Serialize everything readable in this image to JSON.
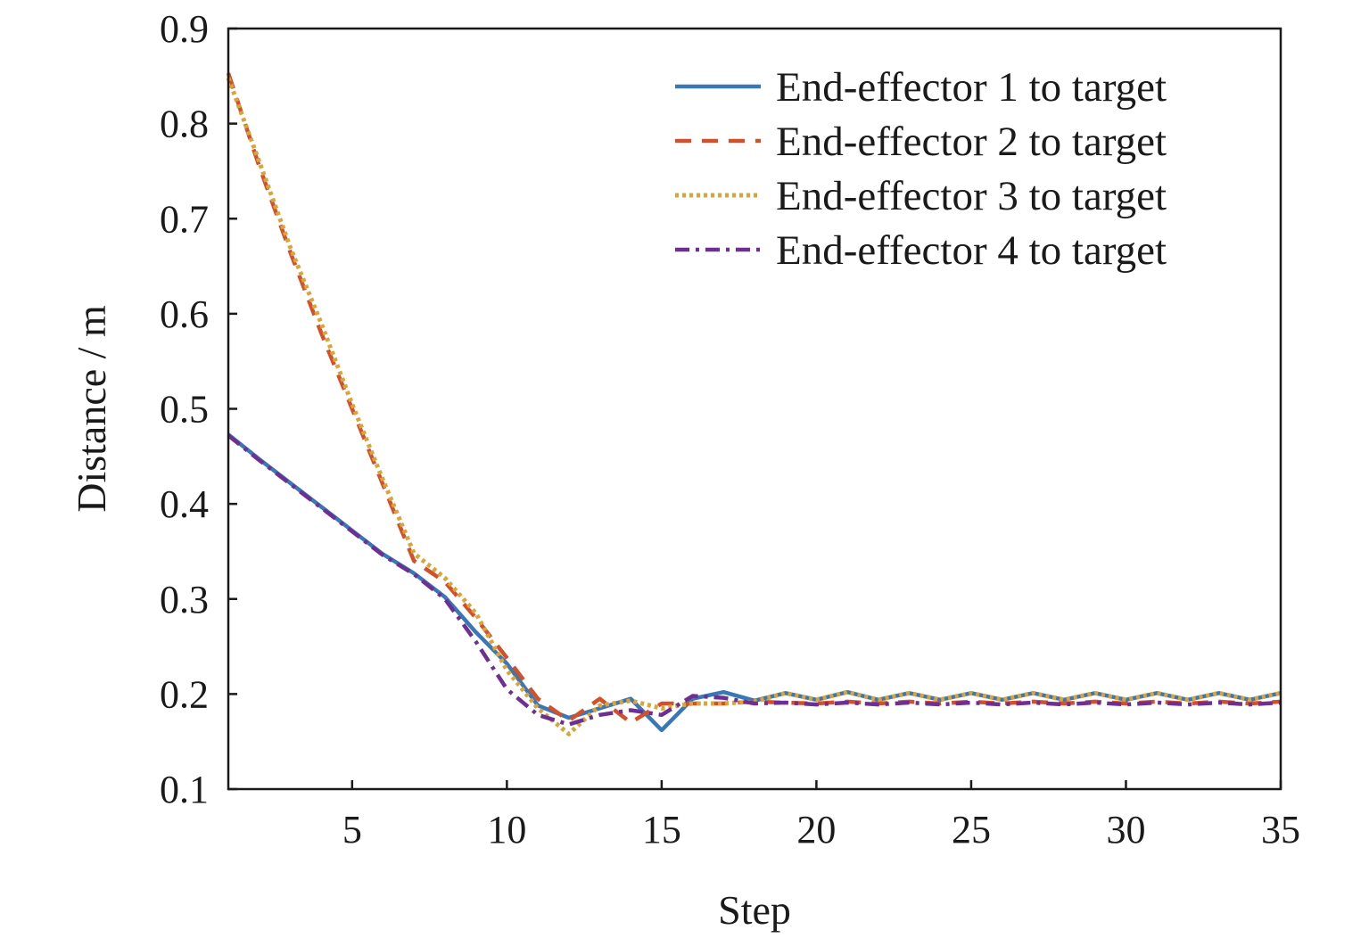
{
  "chart_data": {
    "type": "line",
    "title": "",
    "xlabel": "Step",
    "ylabel": "Distance / m",
    "xlim": [
      1,
      35
    ],
    "ylim": [
      0.1,
      0.9
    ],
    "xticks": [
      5,
      10,
      15,
      20,
      25,
      30,
      35
    ],
    "xtick_labels": [
      "5",
      "10",
      "15",
      "20",
      "25",
      "30",
      "35"
    ],
    "yticks": [
      0.1,
      0.2,
      0.3,
      0.4,
      0.5,
      0.6,
      0.7,
      0.8,
      0.9
    ],
    "ytick_labels": [
      "0.1",
      "0.2",
      "0.3",
      "0.4",
      "0.5",
      "0.6",
      "0.7",
      "0.8",
      "0.9"
    ],
    "grid": false,
    "legend_position": "top-right",
    "x": [
      1,
      2,
      3,
      4,
      5,
      6,
      7,
      8,
      9,
      10,
      11,
      12,
      13,
      14,
      15,
      16,
      17,
      18,
      19,
      20,
      21,
      22,
      23,
      24,
      25,
      26,
      27,
      28,
      29,
      30,
      31,
      32,
      33,
      34,
      35
    ],
    "series": [
      {
        "name": "End-effector 1 to target",
        "color": "#3a78b5",
        "dash": "solid",
        "values": [
          0.473,
          0.447,
          0.422,
          0.397,
          0.372,
          0.347,
          0.327,
          0.302,
          0.265,
          0.232,
          0.188,
          0.175,
          0.185,
          0.195,
          0.162,
          0.195,
          0.202,
          0.193,
          0.201,
          0.194,
          0.202,
          0.194,
          0.201,
          0.194,
          0.201,
          0.194,
          0.201,
          0.194,
          0.201,
          0.194,
          0.201,
          0.194,
          0.201,
          0.194,
          0.201
        ]
      },
      {
        "name": "End-effector 2 to target",
        "color": "#d2502a",
        "dash": "dashed",
        "values": [
          0.853,
          0.755,
          0.665,
          0.58,
          0.5,
          0.42,
          0.34,
          0.318,
          0.28,
          0.238,
          0.195,
          0.172,
          0.195,
          0.17,
          0.19,
          0.19,
          0.19,
          0.192,
          0.191,
          0.19,
          0.192,
          0.19,
          0.192,
          0.19,
          0.192,
          0.19,
          0.192,
          0.19,
          0.192,
          0.19,
          0.192,
          0.19,
          0.192,
          0.19,
          0.192
        ]
      },
      {
        "name": "End-effector 3 to target",
        "color": "#d9a43a",
        "dash": "dotted",
        "values": [
          0.848,
          0.76,
          0.67,
          0.59,
          0.505,
          0.425,
          0.348,
          0.322,
          0.285,
          0.225,
          0.185,
          0.158,
          0.188,
          0.193,
          0.185,
          0.19,
          0.19,
          0.192,
          0.201,
          0.194,
          0.202,
          0.194,
          0.201,
          0.194,
          0.201,
          0.194,
          0.201,
          0.194,
          0.201,
          0.194,
          0.201,
          0.194,
          0.201,
          0.194,
          0.201
        ]
      },
      {
        "name": "End-effector 4 to target",
        "color": "#6e2f92",
        "dash": "dash-dot",
        "values": [
          0.472,
          0.446,
          0.421,
          0.396,
          0.371,
          0.346,
          0.326,
          0.3,
          0.255,
          0.205,
          0.178,
          0.168,
          0.178,
          0.183,
          0.178,
          0.198,
          0.196,
          0.19,
          0.191,
          0.189,
          0.191,
          0.189,
          0.191,
          0.189,
          0.191,
          0.189,
          0.191,
          0.189,
          0.191,
          0.189,
          0.191,
          0.189,
          0.191,
          0.189,
          0.191
        ]
      }
    ]
  }
}
